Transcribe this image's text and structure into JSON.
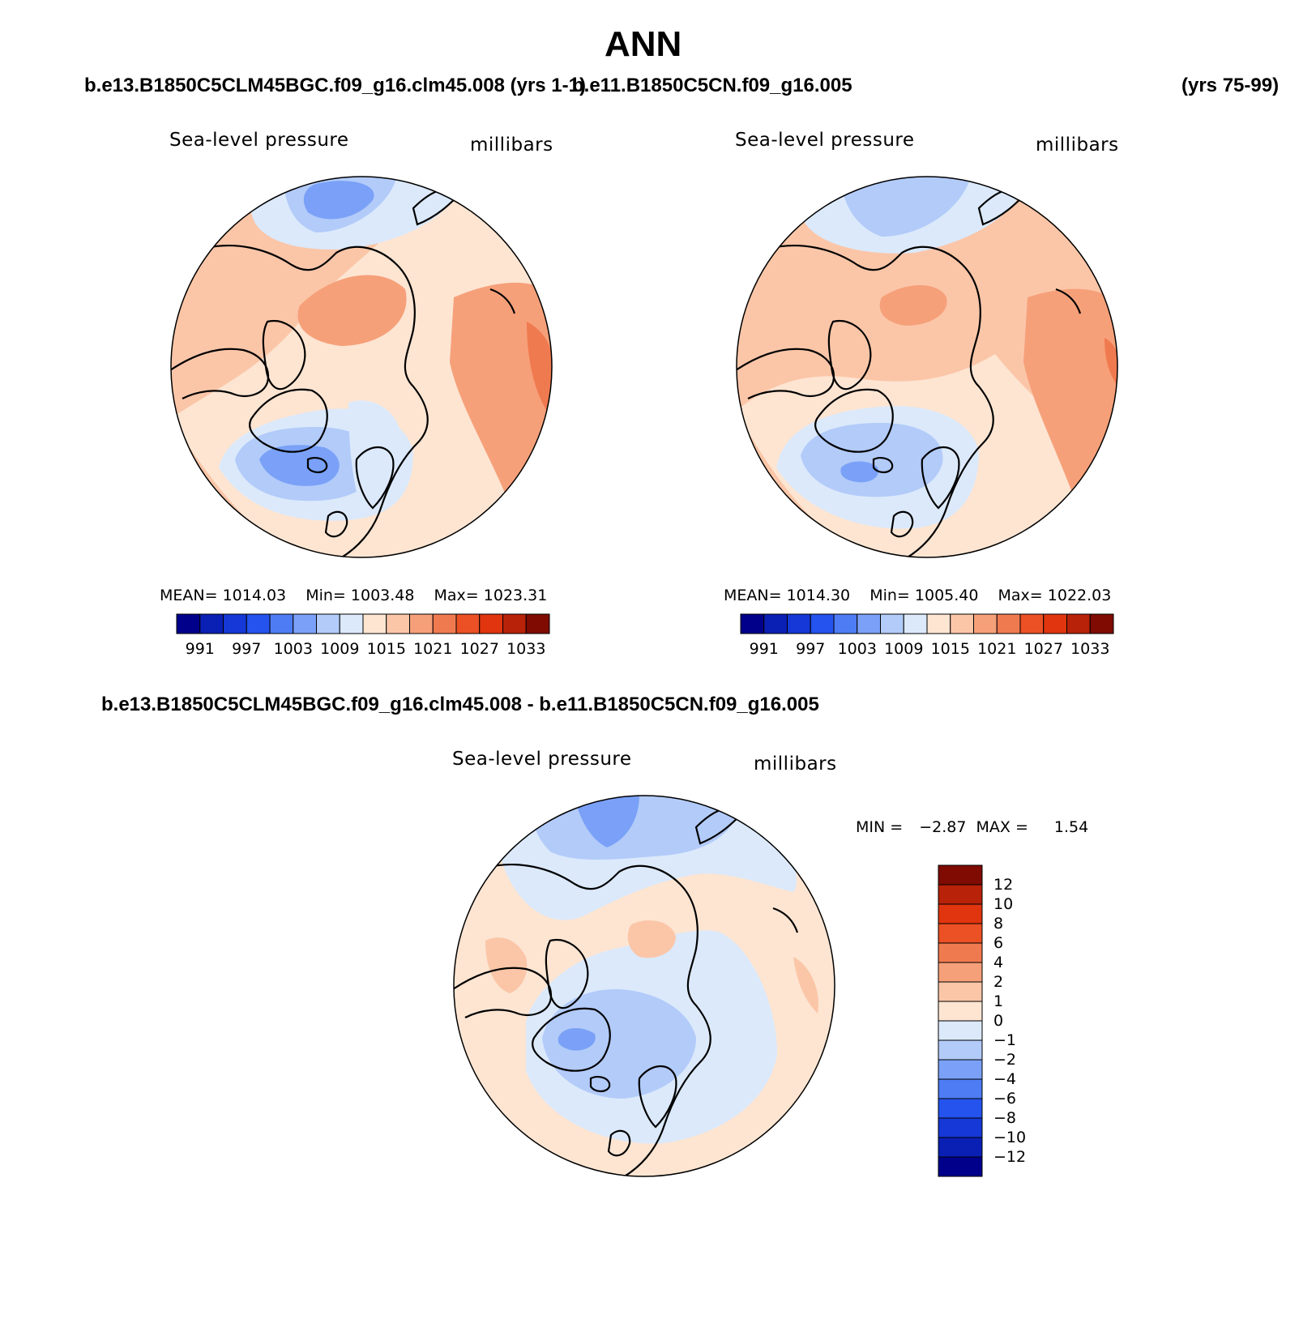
{
  "title": "ANN",
  "colors": {
    "abs_scale": [
      "#00008b",
      "#0a1fb4",
      "#1538d6",
      "#2453ee",
      "#4d7cf4",
      "#7aa1f7",
      "#b2cbf9",
      "#dbe9fb",
      "#fde5d2",
      "#fbc6a8",
      "#f6a07a",
      "#f07a4f",
      "#ec5025",
      "#e0350f",
      "#b72209",
      "#7f0b02"
    ],
    "diff_scale": [
      "#00008b",
      "#0a1fb4",
      "#1538d6",
      "#2453ee",
      "#4d7cf4",
      "#7aa1f7",
      "#b2cbf9",
      "#dbe9fb",
      "#fde5d2",
      "#fbc6a8",
      "#f6a07a",
      "#f07a4f",
      "#ec5025",
      "#e0350f",
      "#b72209",
      "#7f0b02"
    ]
  },
  "headers": {
    "left_case": "b.e13.B1850C5CLM45BGC.f09_g16.clm45.008 (yrs 1-1)",
    "right_case": "b.e11.B1850C5CN.f09_g16.005",
    "right_years": "(yrs 75-99)",
    "diff_case": "b.e13.B1850C5CLM45BGC.f09_g16.clm45.008 - b.e11.B1850C5CN.f09_g16.005"
  },
  "panels": [
    {
      "variable": "Sea-level pressure",
      "units": "millibars",
      "stats": {
        "mean_label": "MEAN=",
        "mean": "1014.03",
        "min_label": "Min=",
        "min": "1003.48",
        "max_label": "Max=",
        "max": "1023.31"
      },
      "colorbar_ticks": [
        "991",
        "997",
        "1003",
        "1009",
        "1015",
        "1021",
        "1027",
        "1033"
      ]
    },
    {
      "variable": "Sea-level pressure",
      "units": "millibars",
      "stats": {
        "mean_label": "MEAN=",
        "mean": "1014.30",
        "min_label": "Min=",
        "min": "1005.40",
        "max_label": "Max=",
        "max": "1022.03"
      },
      "colorbar_ticks": [
        "991",
        "997",
        "1003",
        "1009",
        "1015",
        "1021",
        "1027",
        "1033"
      ]
    }
  ],
  "diff_panel": {
    "variable": "Sea-level pressure",
    "units": "millibars",
    "min_label": "MIN =",
    "min": "−2.87",
    "max_label": "MAX =",
    "max": "1.54",
    "colorbar_ticks": [
      "12",
      "10",
      "8",
      "6",
      "4",
      "2",
      "1",
      "0",
      "−1",
      "−2",
      "−4",
      "−6",
      "−8",
      "−10",
      "−12"
    ]
  }
}
